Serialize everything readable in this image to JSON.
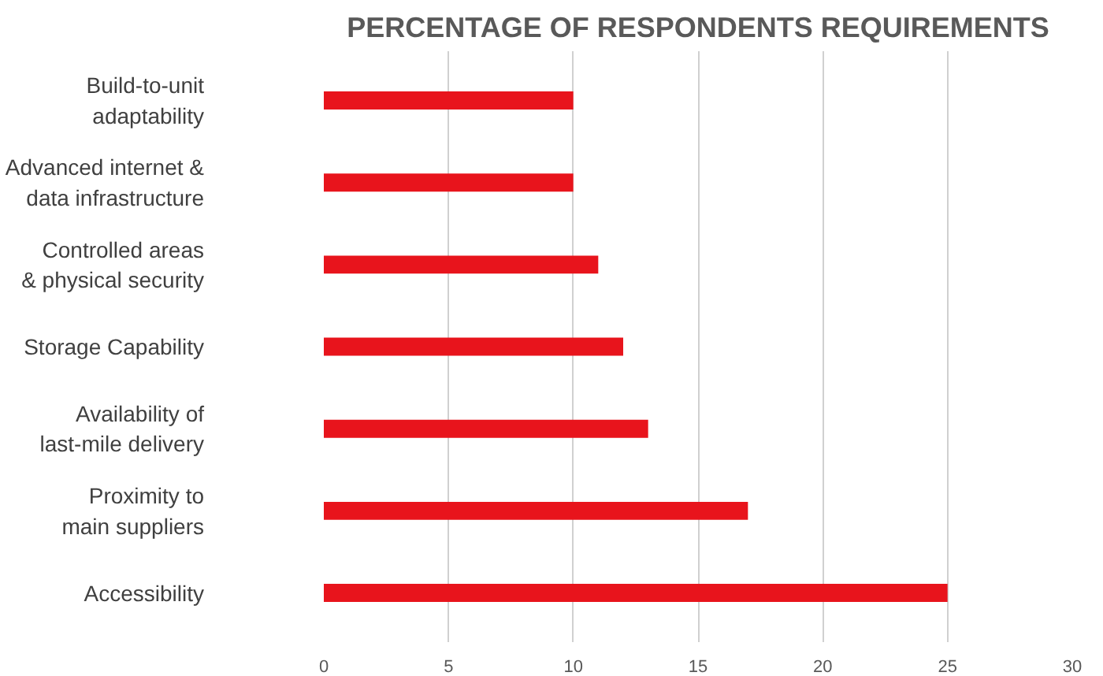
{
  "chart_data": {
    "type": "bar",
    "orientation": "horizontal",
    "title": "PERCENTAGE OF RESPONDENTS REQUIREMENTS",
    "categories": [
      "Build-to-unit\nadaptability",
      "Advanced internet &\ndata infrastructure",
      "Controlled areas\n& physical security",
      "Storage Capability",
      "Availability of\nlast-mile delivery",
      "Proximity to\nmain suppliers",
      "Accessibility"
    ],
    "values": [
      10,
      10,
      11,
      12,
      13,
      17,
      25
    ],
    "color": "#e8141c",
    "xlim": [
      0,
      30
    ],
    "xticks": [
      0,
      5,
      10,
      15,
      20,
      25,
      30
    ],
    "grid": "x"
  }
}
